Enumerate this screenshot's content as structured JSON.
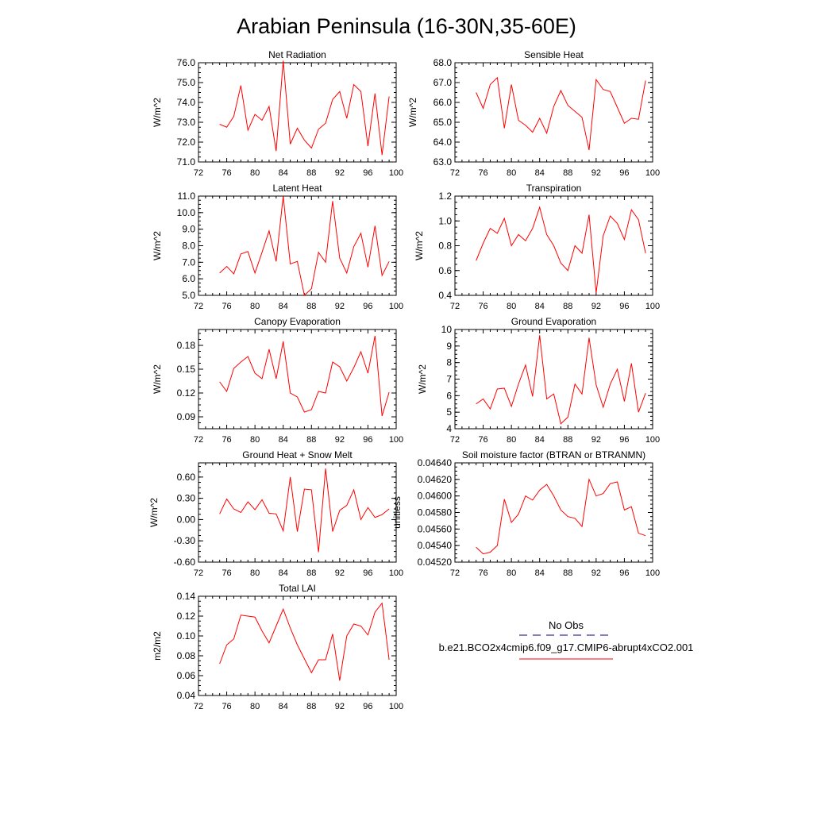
{
  "title": "Arabian Peninsula (16-30N,35-60E)",
  "colors": {
    "model_line": "#ff0000",
    "obs_line": "#000080",
    "axes": "#000000"
  },
  "legend": {
    "obs_label": "No Obs",
    "model_label": "b.e21.BCO2x4cmip6.f09_g17.CMIP6-abrupt4xCO2.001"
  },
  "chart_data": [
    {
      "type": "line",
      "title": "Net Radiation",
      "ylabel": "W/m^2",
      "xlim": [
        72,
        100
      ],
      "ylim": [
        71,
        76
      ],
      "xticks": [
        72,
        76,
        80,
        84,
        88,
        92,
        96,
        100
      ],
      "yticks": [
        "71.0",
        "72.0",
        "73.0",
        "74.0",
        "75.0",
        "76.0"
      ],
      "series": [
        {
          "x": [
            75,
            76,
            77,
            78,
            79,
            80,
            81,
            82,
            83,
            84,
            85,
            86,
            87,
            88,
            89,
            90,
            91,
            92,
            93,
            94,
            95,
            96,
            97,
            98,
            99
          ],
          "values": [
            72.9,
            72.75,
            73.3,
            74.85,
            72.6,
            73.4,
            73.1,
            73.8,
            71.55,
            76.1,
            71.9,
            72.7,
            72.1,
            71.7,
            72.65,
            72.95,
            74.15,
            74.55,
            73.2,
            74.9,
            74.55,
            71.8,
            74.45,
            71.35,
            74.3
          ]
        }
      ]
    },
    {
      "type": "line",
      "title": "Sensible Heat",
      "ylabel": "W/m^2",
      "xlim": [
        72,
        100
      ],
      "ylim": [
        63,
        68
      ],
      "xticks": [
        72,
        76,
        80,
        84,
        88,
        92,
        96,
        100
      ],
      "yticks": [
        "63.0",
        "64.0",
        "65.0",
        "66.0",
        "67.0",
        "68.0"
      ],
      "series": [
        {
          "x": [
            75,
            76,
            77,
            78,
            79,
            80,
            81,
            82,
            83,
            84,
            85,
            86,
            87,
            88,
            89,
            90,
            91,
            92,
            93,
            94,
            95,
            96,
            97,
            98,
            99
          ],
          "values": [
            66.5,
            65.7,
            66.9,
            67.25,
            64.7,
            66.9,
            65.1,
            64.85,
            64.5,
            65.2,
            64.45,
            65.8,
            66.6,
            65.85,
            65.55,
            65.25,
            63.6,
            67.15,
            66.65,
            66.55,
            65.75,
            64.95,
            65.2,
            65.15,
            67.1
          ]
        }
      ]
    },
    {
      "type": "line",
      "title": "Latent Heat",
      "ylabel": "W/m^2",
      "xlim": [
        72,
        100
      ],
      "ylim": [
        5,
        11
      ],
      "xticks": [
        72,
        76,
        80,
        84,
        88,
        92,
        96,
        100
      ],
      "yticks": [
        "5.0",
        "6.0",
        "7.0",
        "8.0",
        "9.0",
        "10.0",
        "11.0"
      ],
      "series": [
        {
          "x": [
            75,
            76,
            77,
            78,
            79,
            80,
            81,
            82,
            83,
            84,
            85,
            86,
            87,
            88,
            89,
            90,
            91,
            92,
            93,
            94,
            95,
            96,
            97,
            98,
            99
          ],
          "values": [
            6.35,
            6.75,
            6.3,
            7.5,
            7.65,
            6.35,
            7.6,
            8.9,
            7.05,
            11.0,
            6.9,
            7.05,
            5.0,
            5.4,
            7.6,
            7.0,
            10.7,
            7.25,
            6.35,
            7.95,
            8.75,
            6.7,
            9.2,
            6.2,
            7.05
          ]
        }
      ]
    },
    {
      "type": "line",
      "title": "Transpiration",
      "ylabel": "W/m^2",
      "xlim": [
        72,
        100
      ],
      "ylim": [
        0.4,
        1.2
      ],
      "xticks": [
        72,
        76,
        80,
        84,
        88,
        92,
        96,
        100
      ],
      "yticks": [
        "0.4",
        "0.6",
        "0.8",
        "1.0",
        "1.2"
      ],
      "series": [
        {
          "x": [
            75,
            76,
            77,
            78,
            79,
            80,
            81,
            82,
            83,
            84,
            85,
            86,
            87,
            88,
            89,
            90,
            91,
            92,
            93,
            94,
            95,
            96,
            97,
            98,
            99
          ],
          "values": [
            0.68,
            0.82,
            0.94,
            0.9,
            1.02,
            0.8,
            0.89,
            0.84,
            0.94,
            1.11,
            0.89,
            0.8,
            0.66,
            0.6,
            0.8,
            0.74,
            1.05,
            0.42,
            0.88,
            1.04,
            0.98,
            0.85,
            1.09,
            1.01,
            0.74
          ]
        }
      ]
    },
    {
      "type": "line",
      "title": "Canopy Evaporation",
      "ylabel": "W/m^2",
      "xlim": [
        72,
        100
      ],
      "ylim": [
        0.075,
        0.2
      ],
      "xticks": [
        72,
        76,
        80,
        84,
        88,
        92,
        96,
        100
      ],
      "yticks": [
        "0.09",
        "0.12",
        "0.15",
        "0.18"
      ],
      "series": [
        {
          "x": [
            75,
            76,
            77,
            78,
            79,
            80,
            81,
            82,
            83,
            84,
            85,
            86,
            87,
            88,
            89,
            90,
            91,
            92,
            93,
            94,
            95,
            96,
            97,
            98,
            99
          ],
          "values": [
            0.134,
            0.122,
            0.151,
            0.159,
            0.166,
            0.145,
            0.138,
            0.175,
            0.138,
            0.185,
            0.12,
            0.115,
            0.096,
            0.099,
            0.122,
            0.12,
            0.159,
            0.153,
            0.135,
            0.152,
            0.172,
            0.145,
            0.192,
            0.091,
            0.121
          ]
        }
      ]
    },
    {
      "type": "line",
      "title": "Ground Evaporation",
      "ylabel": "W/m^2",
      "xlim": [
        72,
        100
      ],
      "ylim": [
        4,
        10
      ],
      "xticks": [
        72,
        76,
        80,
        84,
        88,
        92,
        96,
        100
      ],
      "yticks": [
        "4",
        "5",
        "6",
        "7",
        "8",
        "9",
        "10"
      ],
      "series": [
        {
          "x": [
            75,
            76,
            77,
            78,
            79,
            80,
            81,
            82,
            83,
            84,
            85,
            86,
            87,
            88,
            89,
            90,
            91,
            92,
            93,
            94,
            95,
            96,
            97,
            98,
            99
          ],
          "values": [
            5.5,
            5.8,
            5.2,
            6.4,
            6.45,
            5.35,
            6.7,
            7.85,
            5.95,
            9.65,
            5.8,
            6.1,
            4.3,
            4.7,
            6.7,
            6.1,
            9.5,
            6.65,
            5.3,
            6.7,
            7.6,
            5.65,
            7.95,
            5.0,
            6.15
          ]
        }
      ]
    },
    {
      "type": "line",
      "title": "Ground Heat + Snow Melt",
      "ylabel": "W/m^2",
      "xlim": [
        72,
        100
      ],
      "ylim": [
        -0.6,
        0.8
      ],
      "xticks": [
        72,
        76,
        80,
        84,
        88,
        92,
        96,
        100
      ],
      "yticks": [
        "-0.60",
        "-0.30",
        "0.00",
        "0.30",
        "0.60"
      ],
      "series": [
        {
          "x": [
            75,
            76,
            77,
            78,
            79,
            80,
            81,
            82,
            83,
            84,
            85,
            86,
            87,
            88,
            89,
            90,
            91,
            92,
            93,
            94,
            95,
            96,
            97,
            98,
            99
          ],
          "values": [
            0.08,
            0.29,
            0.15,
            0.1,
            0.25,
            0.14,
            0.28,
            0.09,
            0.08,
            -0.16,
            0.6,
            -0.17,
            0.43,
            0.42,
            -0.46,
            0.72,
            -0.17,
            0.13,
            0.2,
            0.42,
            0.0,
            0.17,
            0.03,
            0.07,
            0.15
          ]
        }
      ]
    },
    {
      "type": "line",
      "title": "Soil moisture factor (BTRAN or BTRANMN)",
      "ylabel": "unitless",
      "xlim": [
        72,
        100
      ],
      "ylim": [
        0.0452,
        0.0464
      ],
      "xticks": [
        72,
        76,
        80,
        84,
        88,
        92,
        96,
        100
      ],
      "yticks": [
        "0.04520",
        "0.04540",
        "0.04560",
        "0.04580",
        "0.04600",
        "0.04620",
        "0.04640"
      ],
      "series": [
        {
          "x": [
            75,
            76,
            77,
            78,
            79,
            80,
            81,
            82,
            83,
            84,
            85,
            86,
            87,
            88,
            89,
            90,
            91,
            92,
            93,
            94,
            95,
            96,
            97,
            98,
            99
          ],
          "values": [
            0.04538,
            0.0453,
            0.04532,
            0.0454,
            0.04596,
            0.04568,
            0.04578,
            0.046,
            0.04595,
            0.04607,
            0.04614,
            0.046,
            0.04583,
            0.04575,
            0.04573,
            0.04563,
            0.0462,
            0.046,
            0.04603,
            0.04615,
            0.04617,
            0.04583,
            0.04587,
            0.04555,
            0.04552
          ]
        }
      ]
    },
    {
      "type": "line",
      "title": "Total LAI",
      "ylabel": "m2/m2",
      "xlim": [
        72,
        100
      ],
      "ylim": [
        0.04,
        0.14
      ],
      "xticks": [
        72,
        76,
        80,
        84,
        88,
        92,
        96,
        100
      ],
      "yticks": [
        "0.04",
        "0.06",
        "0.08",
        "0.10",
        "0.12",
        "0.14"
      ],
      "series": [
        {
          "x": [
            75,
            76,
            77,
            78,
            79,
            80,
            81,
            82,
            83,
            84,
            85,
            86,
            87,
            88,
            89,
            90,
            91,
            92,
            93,
            94,
            95,
            96,
            97,
            98,
            99
          ],
          "values": [
            0.072,
            0.091,
            0.097,
            0.121,
            0.12,
            0.119,
            0.105,
            0.093,
            0.11,
            0.127,
            0.108,
            0.091,
            0.077,
            0.063,
            0.076,
            0.076,
            0.102,
            0.055,
            0.1,
            0.112,
            0.11,
            0.101,
            0.124,
            0.133,
            0.076
          ]
        }
      ]
    }
  ]
}
